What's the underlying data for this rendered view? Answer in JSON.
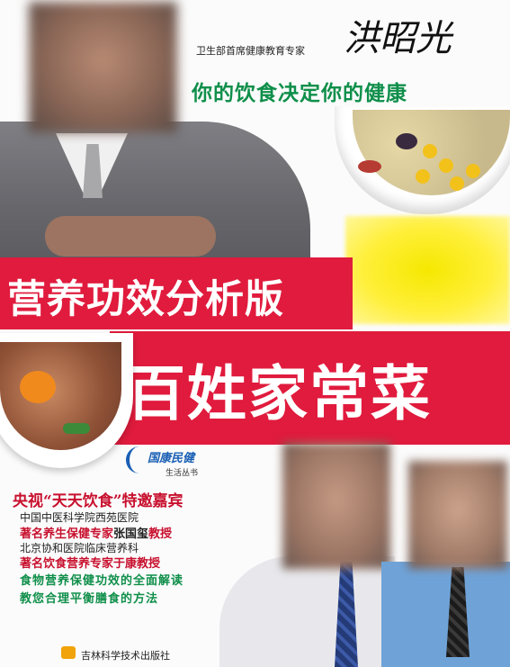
{
  "header": {
    "expert_label": "卫生部首席健康教育专家",
    "signature_text": "洪昭光",
    "slogan": "你的饮食决定你的健康"
  },
  "title": {
    "line1": "营养功效分析版",
    "line2": "百姓家常菜"
  },
  "series": {
    "name": "国康民健",
    "subtitle": "生活丛书"
  },
  "guests": {
    "heading": "央视“天天饮食”特邀嘉宾",
    "items": [
      {
        "org": "中国中医科学院西苑医院",
        "title": "著名养生保健专家",
        "name": "张国玺",
        "suffix": "教授"
      },
      {
        "org": "北京协和医院临床营养科",
        "title": "著名饮食营养专家于",
        "name": "",
        "suffix": "康教授"
      }
    ]
  },
  "features": [
    "食物营养保健功效的全面解读",
    "教您合理平衡膳食的方法"
  ],
  "publisher": "吉林科学技术出版社",
  "colors": {
    "title_band": "#e01b3d",
    "slogan": "#0f8f4a",
    "guest_heading": "#c8102e",
    "series_logo": "#1a5fb4"
  }
}
